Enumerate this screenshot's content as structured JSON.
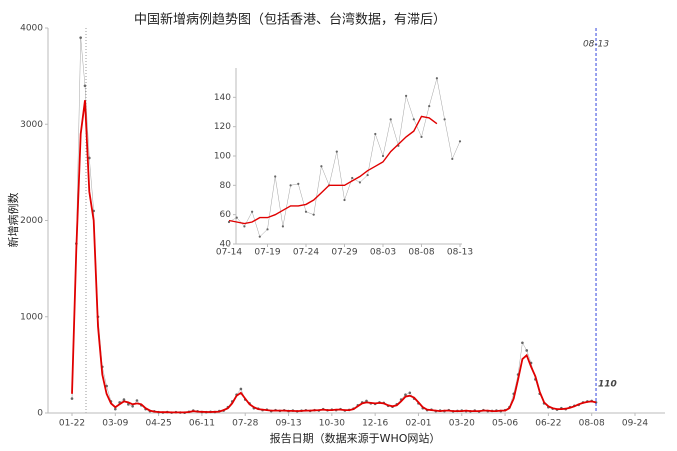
{
  "chart_data": [
    {
      "type": "line",
      "title": "中国新增病例趋势图（包括香港、台湾数据，有滞后）",
      "xlabel": "报告日期（数据来源于WHO网站）",
      "ylabel": "新增病例数",
      "annotations": [
        "08-13",
        "110"
      ],
      "categories": [
        "01-22",
        null,
        null,
        null,
        null,
        null,
        null,
        null,
        null,
        null,
        "03-09",
        null,
        null,
        null,
        null,
        null,
        null,
        null,
        null,
        null,
        "04-25",
        null,
        null,
        null,
        null,
        null,
        null,
        null,
        null,
        null,
        "06-11",
        null,
        null,
        null,
        null,
        null,
        null,
        null,
        null,
        null,
        "07-28",
        null,
        null,
        null,
        null,
        null,
        null,
        null,
        null,
        null,
        "09-13",
        null,
        null,
        null,
        null,
        null,
        null,
        null,
        null,
        null,
        "10-30",
        null,
        null,
        null,
        null,
        null,
        null,
        null,
        null,
        null,
        "12-16",
        null,
        null,
        null,
        null,
        null,
        null,
        null,
        null,
        null,
        "02-01",
        null,
        null,
        null,
        null,
        null,
        null,
        null,
        null,
        null,
        "03-20",
        null,
        null,
        null,
        null,
        null,
        null,
        null,
        null,
        null,
        "05-06",
        null,
        null,
        null,
        null,
        null,
        null,
        null,
        null,
        null,
        "06-22",
        null,
        null,
        null,
        null,
        null,
        null,
        null,
        null,
        null,
        "08-08",
        null,
        null,
        null,
        null,
        null,
        null,
        null,
        null,
        null,
        "09-24"
      ],
      "ylim": [
        0,
        4000
      ],
      "yticks": [
        0,
        1000,
        2000,
        3000,
        4000
      ],
      "series": [
        {
          "color": "#666666",
          "markers": true,
          "values": [
            150,
            1760,
            3900,
            3400,
            2650,
            2100,
            1000,
            480,
            280,
            120,
            40,
            110,
            140,
            90,
            70,
            130,
            80,
            40,
            20,
            18,
            8,
            5,
            10,
            4,
            8,
            5,
            3,
            12,
            25,
            18,
            10,
            8,
            12,
            10,
            20,
            25,
            60,
            120,
            190,
            250,
            140,
            100,
            50,
            45,
            30,
            35,
            20,
            30,
            22,
            28,
            20,
            25,
            18,
            24,
            28,
            22,
            30,
            26,
            40,
            28,
            34,
            30,
            40,
            26,
            32,
            45,
            80,
            110,
            125,
            100,
            95,
            110,
            105,
            75,
            65,
            90,
            140,
            190,
            210,
            150,
            100,
            50,
            30,
            35,
            20,
            25,
            20,
            30,
            18,
            22,
            25,
            20,
            18,
            25,
            15,
            30,
            20,
            22,
            25,
            20,
            30,
            60,
            200,
            400,
            730,
            650,
            520,
            350,
            200,
            100,
            60,
            45,
            35,
            50,
            40,
            60,
            75,
            85,
            110,
            120,
            125,
            110,
            null,
            null,
            null,
            null,
            null,
            null,
            null,
            null,
            null
          ]
        },
        {
          "color": "#e00000",
          "markers": false,
          "values": [
            200,
            1700,
            2900,
            3250,
            2300,
            2000,
            900,
            400,
            200,
            100,
            60,
            90,
            120,
            110,
            90,
            100,
            90,
            50,
            25,
            15,
            10,
            8,
            8,
            6,
            6,
            6,
            6,
            10,
            20,
            15,
            12,
            10,
            10,
            12,
            15,
            30,
            50,
            100,
            180,
            210,
            150,
            90,
            60,
            40,
            35,
            30,
            25,
            25,
            25,
            25,
            22,
            22,
            20,
            22,
            25,
            25,
            28,
            30,
            35,
            30,
            30,
            35,
            35,
            30,
            30,
            40,
            70,
            100,
            110,
            105,
            100,
            105,
            100,
            80,
            70,
            80,
            120,
            170,
            180,
            160,
            110,
            60,
            35,
            30,
            25,
            20,
            25,
            25,
            20,
            20,
            20,
            25,
            20,
            20,
            20,
            25,
            25,
            20,
            20,
            25,
            25,
            50,
            150,
            350,
            560,
            600,
            480,
            380,
            220,
            110,
            70,
            50,
            40,
            40,
            45,
            55,
            70,
            90,
            105,
            115,
            120,
            110,
            null,
            null,
            null,
            null,
            null,
            null,
            null,
            null,
            null
          ]
        }
      ]
    },
    {
      "type": "line",
      "categories": [
        "07-14",
        null,
        null,
        null,
        null,
        "07-19",
        null,
        null,
        null,
        null,
        "07-24",
        null,
        null,
        null,
        null,
        "07-29",
        null,
        null,
        null,
        null,
        "08-03",
        null,
        null,
        null,
        null,
        "08-08",
        null,
        null,
        null,
        null,
        "08-13"
      ],
      "ylim": [
        40,
        160
      ],
      "yticks": [
        40,
        60,
        80,
        100,
        120,
        140
      ],
      "series": [
        {
          "color": "#666666",
          "markers": true,
          "values": [
            55,
            58,
            52,
            62,
            45,
            50,
            86,
            52,
            80,
            81,
            62,
            60,
            93,
            80,
            103,
            70,
            85,
            82,
            87,
            115,
            100,
            125,
            107,
            141,
            125,
            113,
            134,
            153,
            125,
            98,
            110
          ]
        },
        {
          "color": "#e00000",
          "markers": false,
          "values": [
            56,
            55,
            54,
            55,
            58,
            58,
            60,
            63,
            66,
            66,
            67,
            70,
            75,
            80,
            80,
            80,
            83,
            86,
            90,
            93,
            96,
            103,
            108,
            113,
            117,
            127,
            126,
            122,
            null,
            null,
            null
          ]
        }
      ]
    }
  ]
}
